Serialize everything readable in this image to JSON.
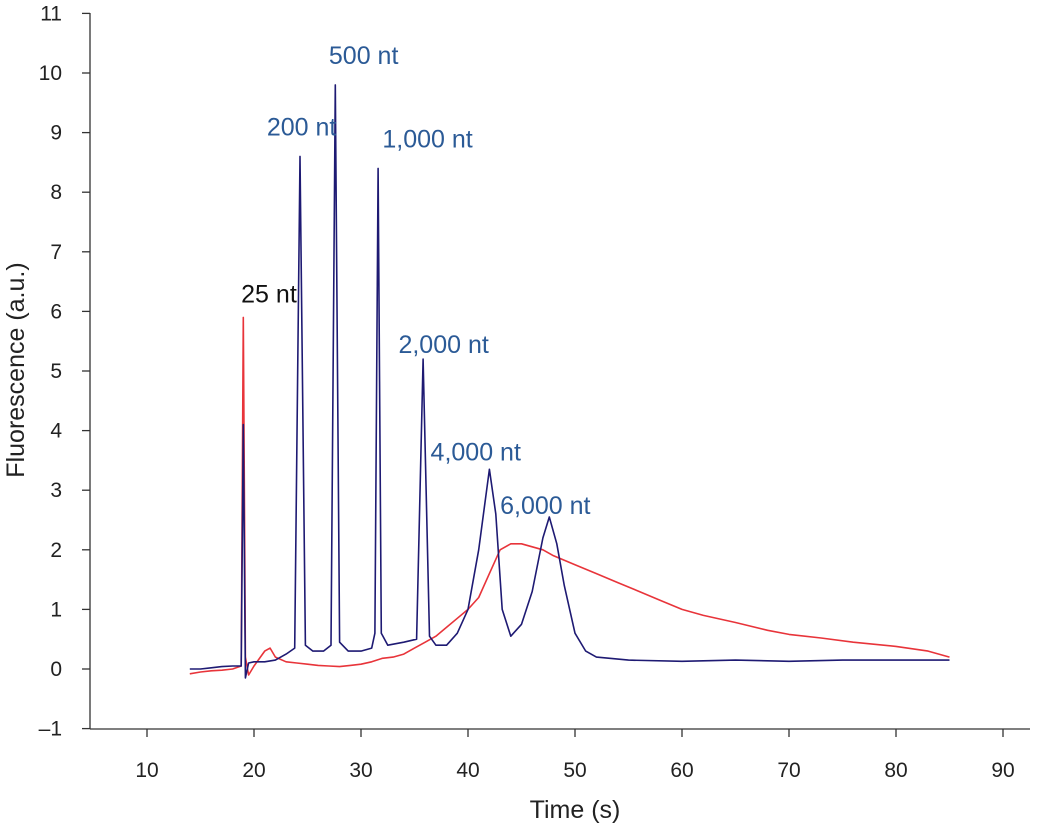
{
  "chart_data": {
    "type": "line",
    "title": "",
    "xlabel": "Time (s)",
    "ylabel": "Fluorescence (a.u.)",
    "xlim": [
      5,
      95
    ],
    "ylim": [
      -1,
      11
    ],
    "xticks": [
      "10",
      "20",
      "30",
      "40",
      "50",
      "60",
      "70",
      "80",
      "90"
    ],
    "yticks": [
      "–1",
      "0",
      "1",
      "2",
      "3",
      "4",
      "5",
      "6",
      "7",
      "8",
      "9",
      "10",
      "11"
    ],
    "grid": false,
    "series": [
      {
        "color": "#e8343a",
        "points": [
          [
            14,
            -0.08
          ],
          [
            15,
            -0.05
          ],
          [
            16,
            -0.03
          ],
          [
            17,
            -0.02
          ],
          [
            18,
            0.0
          ],
          [
            18.8,
            0.05
          ],
          [
            19.0,
            5.9
          ],
          [
            19.2,
            0.2
          ],
          [
            19.5,
            -0.1
          ],
          [
            20,
            0.05
          ],
          [
            21,
            0.3
          ],
          [
            21.5,
            0.35
          ],
          [
            22,
            0.2
          ],
          [
            23,
            0.12
          ],
          [
            24,
            0.1
          ],
          [
            25,
            0.08
          ],
          [
            26,
            0.06
          ],
          [
            27,
            0.05
          ],
          [
            28,
            0.04
          ],
          [
            29,
            0.06
          ],
          [
            30,
            0.08
          ],
          [
            31,
            0.12
          ],
          [
            32,
            0.18
          ],
          [
            33,
            0.2
          ],
          [
            34,
            0.25
          ],
          [
            35,
            0.35
          ],
          [
            36,
            0.45
          ],
          [
            37,
            0.55
          ],
          [
            38,
            0.7
          ],
          [
            39,
            0.85
          ],
          [
            40,
            1.0
          ],
          [
            41,
            1.2
          ],
          [
            42,
            1.6
          ],
          [
            43,
            2.0
          ],
          [
            44,
            2.1
          ],
          [
            45,
            2.1
          ],
          [
            46,
            2.05
          ],
          [
            47,
            2.0
          ],
          [
            48,
            1.9
          ],
          [
            50,
            1.75
          ],
          [
            52,
            1.6
          ],
          [
            54,
            1.45
          ],
          [
            56,
            1.3
          ],
          [
            58,
            1.15
          ],
          [
            60,
            1.0
          ],
          [
            62,
            0.9
          ],
          [
            65,
            0.78
          ],
          [
            68,
            0.65
          ],
          [
            70,
            0.58
          ],
          [
            73,
            0.52
          ],
          [
            76,
            0.45
          ],
          [
            80,
            0.38
          ],
          [
            83,
            0.3
          ],
          [
            85,
            0.2
          ]
        ]
      },
      {
        "color": "#1e1a73",
        "points": [
          [
            14,
            0.0
          ],
          [
            15,
            0.0
          ],
          [
            16,
            0.02
          ],
          [
            17,
            0.04
          ],
          [
            18,
            0.05
          ],
          [
            18.8,
            0.05
          ],
          [
            19.0,
            4.1
          ],
          [
            19.2,
            -0.15
          ],
          [
            19.5,
            0.1
          ],
          [
            20,
            0.12
          ],
          [
            21,
            0.12
          ],
          [
            22,
            0.15
          ],
          [
            23,
            0.25
          ],
          [
            23.8,
            0.35
          ],
          [
            24.3,
            8.6
          ],
          [
            24.8,
            0.4
          ],
          [
            25.5,
            0.3
          ],
          [
            26.5,
            0.3
          ],
          [
            27.2,
            0.4
          ],
          [
            27.6,
            9.8
          ],
          [
            28.0,
            0.45
          ],
          [
            28.8,
            0.3
          ],
          [
            30,
            0.3
          ],
          [
            31,
            0.35
          ],
          [
            31.3,
            0.6
          ],
          [
            31.6,
            8.4
          ],
          [
            31.9,
            0.6
          ],
          [
            32.5,
            0.4
          ],
          [
            34,
            0.45
          ],
          [
            35.2,
            0.5
          ],
          [
            35.8,
            5.2
          ],
          [
            36.4,
            0.55
          ],
          [
            37,
            0.4
          ],
          [
            38,
            0.4
          ],
          [
            39,
            0.6
          ],
          [
            40,
            1.0
          ],
          [
            41,
            2.0
          ],
          [
            42,
            3.35
          ],
          [
            42.6,
            2.6
          ],
          [
            43.2,
            1.0
          ],
          [
            44,
            0.55
          ],
          [
            45,
            0.75
          ],
          [
            46,
            1.3
          ],
          [
            47,
            2.2
          ],
          [
            47.6,
            2.55
          ],
          [
            48.3,
            2.1
          ],
          [
            49,
            1.4
          ],
          [
            50,
            0.6
          ],
          [
            51,
            0.3
          ],
          [
            52,
            0.2
          ],
          [
            55,
            0.15
          ],
          [
            60,
            0.13
          ],
          [
            65,
            0.15
          ],
          [
            70,
            0.13
          ],
          [
            75,
            0.15
          ],
          [
            80,
            0.15
          ],
          [
            85,
            0.15
          ]
        ]
      }
    ],
    "annotations": [
      {
        "text": "25 nt",
        "x": 18.8,
        "y": 6.15,
        "color": "#111111"
      },
      {
        "text": "200 nt",
        "x": 21.2,
        "y": 8.95,
        "color": "#2b5a96"
      },
      {
        "text": "500 nt",
        "x": 27.0,
        "y": 10.15,
        "color": "#2b5a96"
      },
      {
        "text": "1,000 nt",
        "x": 32.0,
        "y": 8.75,
        "color": "#2b5a96"
      },
      {
        "text": "2,000 nt",
        "x": 33.5,
        "y": 5.3,
        "color": "#2b5a96"
      },
      {
        "text": "4,000 nt",
        "x": 36.5,
        "y": 3.5,
        "color": "#2b5a96"
      },
      {
        "text": "6,000 nt",
        "x": 43.0,
        "y": 2.6,
        "color": "#2b5a96"
      }
    ]
  }
}
